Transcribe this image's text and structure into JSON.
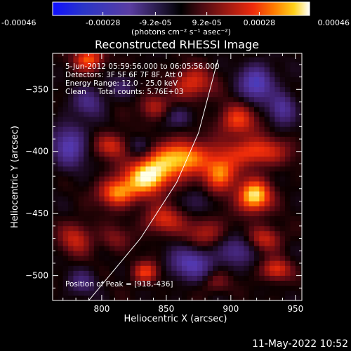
{
  "chart_data": {
    "type": "heatmap",
    "title": "Reconstructed RHESSI Image",
    "xlabel": "Heliocentric X (arcsec)",
    "ylabel": "Heliocentric Y (arcsec)",
    "xlim": [
      762,
      955
    ],
    "ylim": [
      -520,
      -321
    ],
    "xticks": [
      800,
      850,
      900,
      950
    ],
    "yticks": [
      -350,
      -400,
      -450,
      -500
    ],
    "colorbar": {
      "label": "(photons cm⁻² s⁻¹ asec⁻²)",
      "range": [
        -0.00046,
        0.00046
      ],
      "tick_labels": [
        "-0.00046",
        "-0.00028",
        "-9.2e-05",
        "9.2e-05",
        "0.00028",
        "0.00046"
      ],
      "tick_values": [
        -0.00046,
        -0.00028,
        -9.2e-05,
        9.2e-05,
        0.00028,
        0.00046
      ]
    },
    "info_lines": [
      "5-Jun-2012 05:59:56.000 to 06:05:56.000",
      "Detectors: 3F 5F 6F 7F 8F, Att 0",
      "Energy Range: 12.0 - 25.0 keV",
      "Clean     Total counts: 5.76E+03"
    ],
    "peak_label": "Position of Peak = [918,-436]",
    "peak": [
      918,
      -436
    ],
    "limb": [
      [
        790,
        -520
      ],
      [
        830,
        -470
      ],
      [
        858,
        -425
      ],
      [
        875,
        -385
      ],
      [
        890,
        -326
      ]
    ],
    "sources": [
      {
        "x": 836,
        "y": -420,
        "amp": 0.00046,
        "sx": 12,
        "sy": 10
      },
      {
        "x": 862,
        "y": -405,
        "amp": 0.00038,
        "sx": 16,
        "sy": 10
      },
      {
        "x": 812,
        "y": -433,
        "amp": 0.00034,
        "sx": 10,
        "sy": 8
      },
      {
        "x": 918,
        "y": -436,
        "amp": 0.00044,
        "sx": 9,
        "sy": 9
      },
      {
        "x": 892,
        "y": -418,
        "amp": 0.00032,
        "sx": 9,
        "sy": 10
      },
      {
        "x": 920,
        "y": -400,
        "amp": 0.00028,
        "sx": 16,
        "sy": 8
      },
      {
        "x": 905,
        "y": -375,
        "amp": 0.00026,
        "sx": 10,
        "sy": 9
      },
      {
        "x": 870,
        "y": -345,
        "amp": 0.00024,
        "sx": 11,
        "sy": 9
      },
      {
        "x": 840,
        "y": -364,
        "amp": 0.00018,
        "sx": 8,
        "sy": 7
      },
      {
        "x": 808,
        "y": -395,
        "amp": 0.00022,
        "sx": 9,
        "sy": 7
      },
      {
        "x": 848,
        "y": -455,
        "amp": 0.00022,
        "sx": 11,
        "sy": 8
      },
      {
        "x": 880,
        "y": -465,
        "amp": 0.00018,
        "sx": 10,
        "sy": 8
      },
      {
        "x": 927,
        "y": -470,
        "amp": 0.0002,
        "sx": 9,
        "sy": 7
      },
      {
        "x": 780,
        "y": -470,
        "amp": 0.0002,
        "sx": 9,
        "sy": 9
      },
      {
        "x": 790,
        "y": -325,
        "amp": 0.0003,
        "sx": 8,
        "sy": 7
      },
      {
        "x": 810,
        "y": -470,
        "amp": 0.00012,
        "sx": 8,
        "sy": 7
      },
      {
        "x": 834,
        "y": -497,
        "amp": 0.00026,
        "sx": 7,
        "sy": 6
      },
      {
        "x": 935,
        "y": -495,
        "amp": 0.00024,
        "sx": 8,
        "sy": 6
      },
      {
        "x": 888,
        "y": -505,
        "amp": 0.00012,
        "sx": 8,
        "sy": 6
      },
      {
        "x": 920,
        "y": -345,
        "amp": -0.0003,
        "sx": 9,
        "sy": 10
      },
      {
        "x": 940,
        "y": -365,
        "amp": -0.00022,
        "sx": 7,
        "sy": 9
      },
      {
        "x": 775,
        "y": -395,
        "amp": -0.00026,
        "sx": 9,
        "sy": 12
      },
      {
        "x": 790,
        "y": -360,
        "amp": -0.00018,
        "sx": 8,
        "sy": 8
      },
      {
        "x": 870,
        "y": -490,
        "amp": -0.00026,
        "sx": 12,
        "sy": 9
      },
      {
        "x": 905,
        "y": -480,
        "amp": -0.00018,
        "sx": 9,
        "sy": 8
      },
      {
        "x": 830,
        "y": -395,
        "amp": -0.00014,
        "sx": 7,
        "sy": 6
      },
      {
        "x": 875,
        "y": -440,
        "amp": -0.0001,
        "sx": 7,
        "sy": 7
      },
      {
        "x": 860,
        "y": -372,
        "amp": -0.00012,
        "sx": 8,
        "sy": 6
      },
      {
        "x": 785,
        "y": -505,
        "amp": -0.00014,
        "sx": 8,
        "sy": 7
      },
      {
        "x": 815,
        "y": -348,
        "amp": -0.0001,
        "sx": 8,
        "sy": 6
      }
    ]
  },
  "footer": {
    "timestamp": "11-May-2022 10:52"
  }
}
